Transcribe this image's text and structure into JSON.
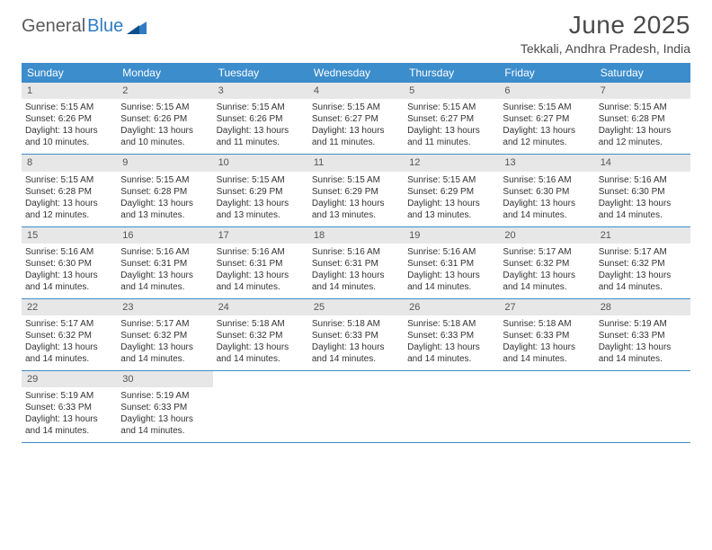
{
  "logo": {
    "word1": "General",
    "word2": "Blue"
  },
  "title": "June 2025",
  "location": "Tekkali, Andhra Pradesh, India",
  "colors": {
    "header_bg": "#3c8dcc",
    "header_text": "#ffffff",
    "daynum_bg": "#e7e7e7",
    "row_border": "#3c8dcc",
    "title_color": "#4a4a4a",
    "logo_gray": "#5b5b5b",
    "logo_blue": "#2f7cc4",
    "body_text": "#333333"
  },
  "weekdays": [
    "Sunday",
    "Monday",
    "Tuesday",
    "Wednesday",
    "Thursday",
    "Friday",
    "Saturday"
  ],
  "days": [
    {
      "n": 1,
      "sunrise": "5:15 AM",
      "sunset": "6:26 PM",
      "daylight": "13 hours and 10 minutes."
    },
    {
      "n": 2,
      "sunrise": "5:15 AM",
      "sunset": "6:26 PM",
      "daylight": "13 hours and 10 minutes."
    },
    {
      "n": 3,
      "sunrise": "5:15 AM",
      "sunset": "6:26 PM",
      "daylight": "13 hours and 11 minutes."
    },
    {
      "n": 4,
      "sunrise": "5:15 AM",
      "sunset": "6:27 PM",
      "daylight": "13 hours and 11 minutes."
    },
    {
      "n": 5,
      "sunrise": "5:15 AM",
      "sunset": "6:27 PM",
      "daylight": "13 hours and 11 minutes."
    },
    {
      "n": 6,
      "sunrise": "5:15 AM",
      "sunset": "6:27 PM",
      "daylight": "13 hours and 12 minutes."
    },
    {
      "n": 7,
      "sunrise": "5:15 AM",
      "sunset": "6:28 PM",
      "daylight": "13 hours and 12 minutes."
    },
    {
      "n": 8,
      "sunrise": "5:15 AM",
      "sunset": "6:28 PM",
      "daylight": "13 hours and 12 minutes."
    },
    {
      "n": 9,
      "sunrise": "5:15 AM",
      "sunset": "6:28 PM",
      "daylight": "13 hours and 13 minutes."
    },
    {
      "n": 10,
      "sunrise": "5:15 AM",
      "sunset": "6:29 PM",
      "daylight": "13 hours and 13 minutes."
    },
    {
      "n": 11,
      "sunrise": "5:15 AM",
      "sunset": "6:29 PM",
      "daylight": "13 hours and 13 minutes."
    },
    {
      "n": 12,
      "sunrise": "5:15 AM",
      "sunset": "6:29 PM",
      "daylight": "13 hours and 13 minutes."
    },
    {
      "n": 13,
      "sunrise": "5:16 AM",
      "sunset": "6:30 PM",
      "daylight": "13 hours and 14 minutes."
    },
    {
      "n": 14,
      "sunrise": "5:16 AM",
      "sunset": "6:30 PM",
      "daylight": "13 hours and 14 minutes."
    },
    {
      "n": 15,
      "sunrise": "5:16 AM",
      "sunset": "6:30 PM",
      "daylight": "13 hours and 14 minutes."
    },
    {
      "n": 16,
      "sunrise": "5:16 AM",
      "sunset": "6:31 PM",
      "daylight": "13 hours and 14 minutes."
    },
    {
      "n": 17,
      "sunrise": "5:16 AM",
      "sunset": "6:31 PM",
      "daylight": "13 hours and 14 minutes."
    },
    {
      "n": 18,
      "sunrise": "5:16 AM",
      "sunset": "6:31 PM",
      "daylight": "13 hours and 14 minutes."
    },
    {
      "n": 19,
      "sunrise": "5:16 AM",
      "sunset": "6:31 PM",
      "daylight": "13 hours and 14 minutes."
    },
    {
      "n": 20,
      "sunrise": "5:17 AM",
      "sunset": "6:32 PM",
      "daylight": "13 hours and 14 minutes."
    },
    {
      "n": 21,
      "sunrise": "5:17 AM",
      "sunset": "6:32 PM",
      "daylight": "13 hours and 14 minutes."
    },
    {
      "n": 22,
      "sunrise": "5:17 AM",
      "sunset": "6:32 PM",
      "daylight": "13 hours and 14 minutes."
    },
    {
      "n": 23,
      "sunrise": "5:17 AM",
      "sunset": "6:32 PM",
      "daylight": "13 hours and 14 minutes."
    },
    {
      "n": 24,
      "sunrise": "5:18 AM",
      "sunset": "6:32 PM",
      "daylight": "13 hours and 14 minutes."
    },
    {
      "n": 25,
      "sunrise": "5:18 AM",
      "sunset": "6:33 PM",
      "daylight": "13 hours and 14 minutes."
    },
    {
      "n": 26,
      "sunrise": "5:18 AM",
      "sunset": "6:33 PM",
      "daylight": "13 hours and 14 minutes."
    },
    {
      "n": 27,
      "sunrise": "5:18 AM",
      "sunset": "6:33 PM",
      "daylight": "13 hours and 14 minutes."
    },
    {
      "n": 28,
      "sunrise": "5:19 AM",
      "sunset": "6:33 PM",
      "daylight": "13 hours and 14 minutes."
    },
    {
      "n": 29,
      "sunrise": "5:19 AM",
      "sunset": "6:33 PM",
      "daylight": "13 hours and 14 minutes."
    },
    {
      "n": 30,
      "sunrise": "5:19 AM",
      "sunset": "6:33 PM",
      "daylight": "13 hours and 14 minutes."
    }
  ],
  "labels": {
    "sunrise": "Sunrise:",
    "sunset": "Sunset:",
    "daylight": "Daylight:"
  },
  "layout": {
    "start_weekday": 0,
    "weeks": 5,
    "cols": 7
  }
}
